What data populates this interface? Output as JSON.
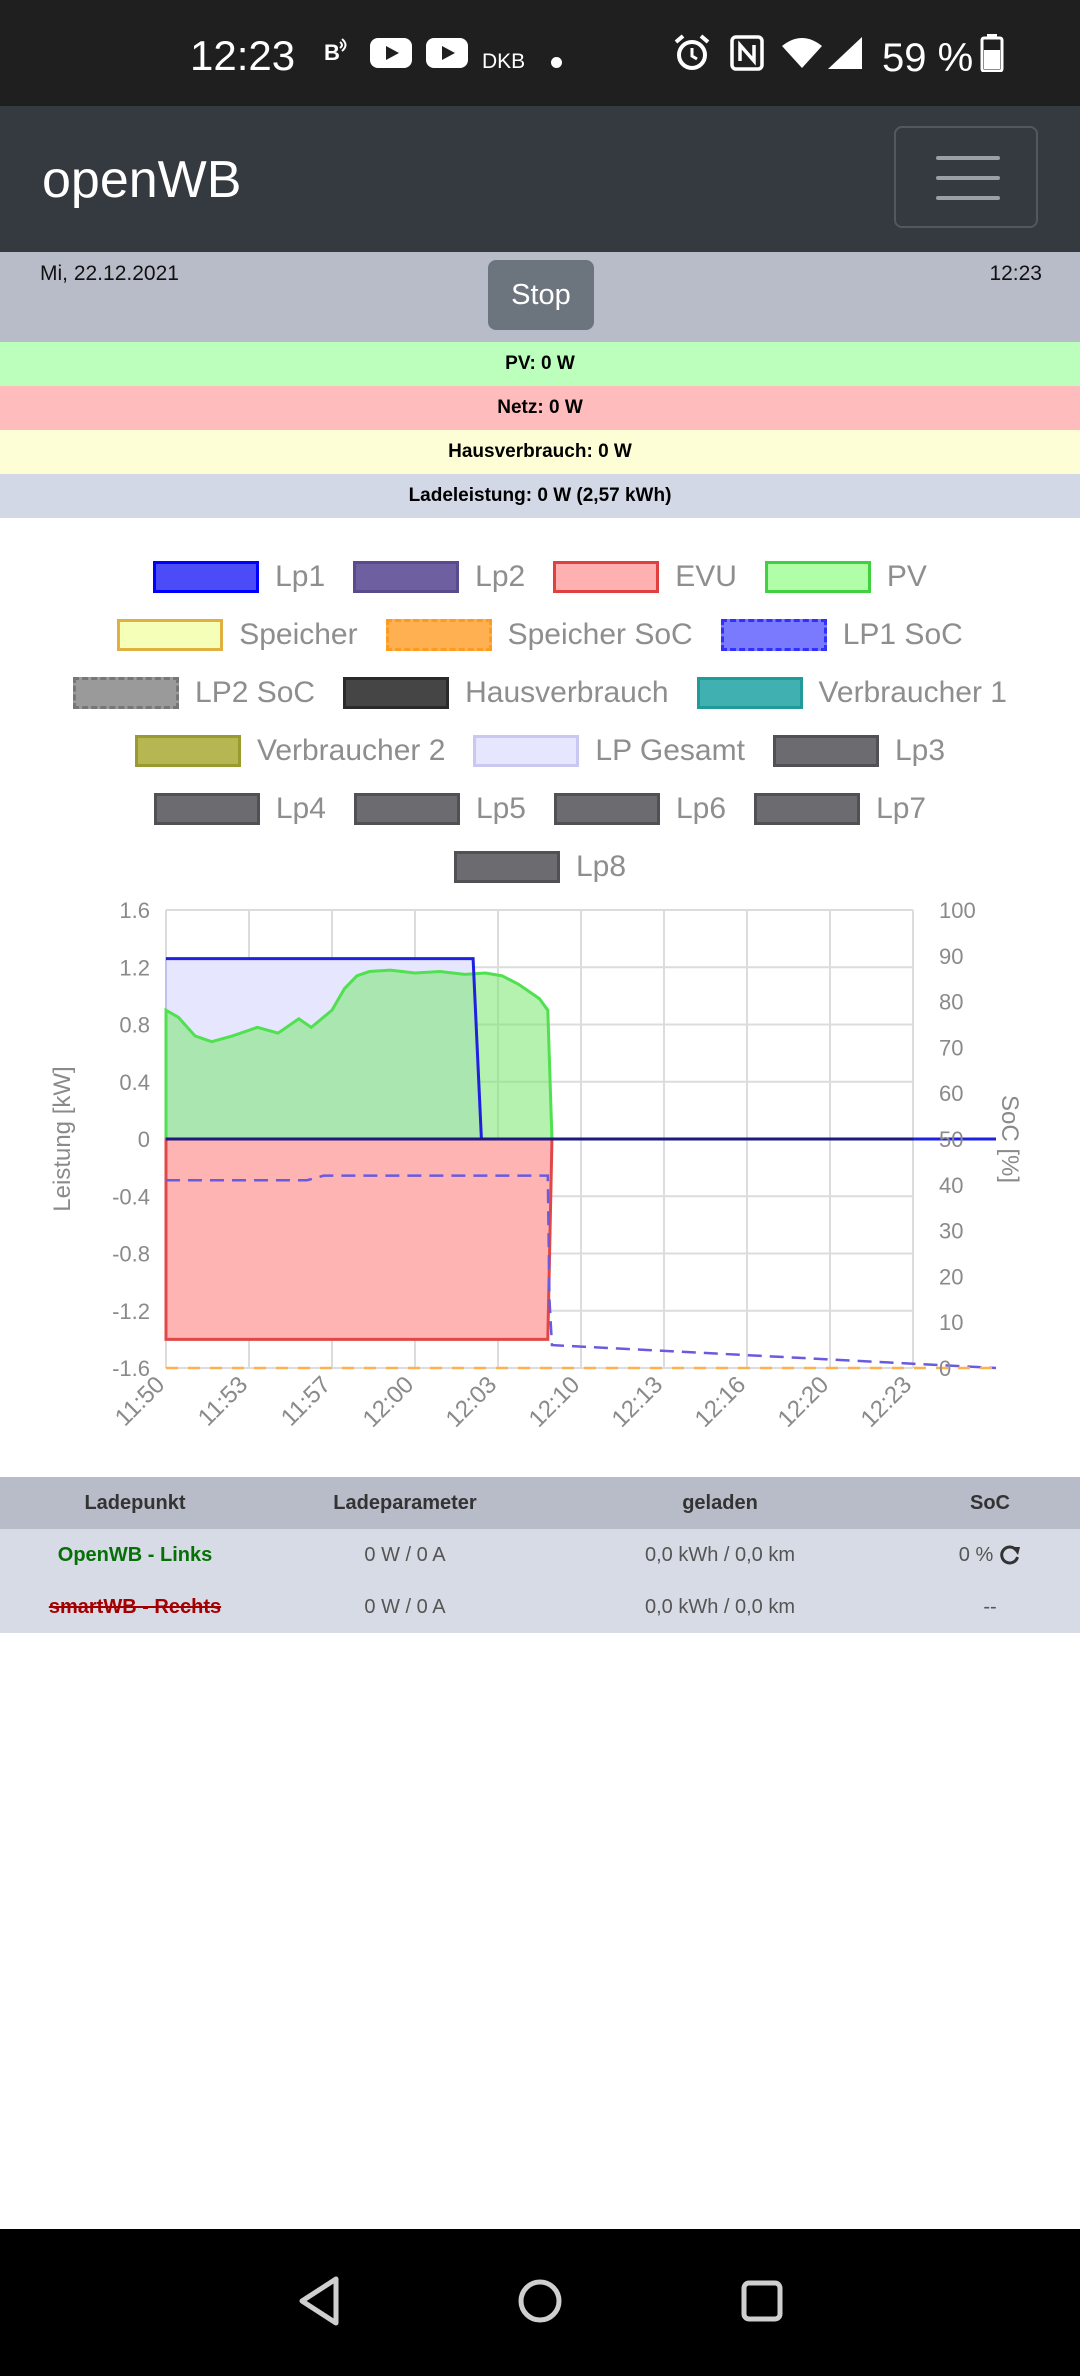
{
  "statusbar": {
    "time": "12:23",
    "icons_left": [
      "bluetooth-b-icon",
      "youtube-icon",
      "youtube-icon"
    ],
    "carrier_text": "DKB",
    "icons_right": [
      "alarm-icon",
      "nfc-icon",
      "wifi-icon",
      "signal-icon",
      "battery-icon"
    ],
    "battery": "59 %"
  },
  "navbar": {
    "brand": "openWB",
    "menu_icon": "hamburger-icon"
  },
  "datebar": {
    "date": "Mi, 22.12.2021",
    "time": "12:23",
    "stop_label": "Stop"
  },
  "rows": {
    "pv": "PV: 0 W",
    "netz": "Netz: 0 W",
    "haus": "Hausverbrauch: 0 W",
    "lade": "Ladeleistung: 0 W (2,57 kWh)"
  },
  "colors": {
    "pv_row": "#bcffbc",
    "netz_row": "#ffbcbc",
    "haus_row": "#fefed6",
    "lade_row": "#d2d8e6"
  },
  "legend": [
    {
      "label": "Lp1",
      "fill": "#4b4bf7",
      "border": "#0000ff",
      "dash": false
    },
    {
      "label": "Lp2",
      "fill": "#6e5fa0",
      "border": "#5a4b8e",
      "dash": false
    },
    {
      "label": "EVU",
      "fill": "#ffb0b0",
      "border": "#e04040",
      "dash": false
    },
    {
      "label": "PV",
      "fill": "#b0ffa8",
      "border": "#40d040",
      "dash": false
    },
    {
      "label": "Speicher",
      "fill": "#f6ffb8",
      "border": "#e0b040",
      "dash": false
    },
    {
      "label": "Speicher SoC",
      "fill": "#ffb050",
      "border": "#ff9a20",
      "dash": true
    },
    {
      "label": "LP1 SoC",
      "fill": "#7a7aff",
      "border": "#3030ff",
      "dash": true
    },
    {
      "label": "LP2 SoC",
      "fill": "#9a9a9a",
      "border": "#777777",
      "dash": true
    },
    {
      "label": "Hausverbrauch",
      "fill": "#454545",
      "border": "#2a2a2a",
      "dash": false
    },
    {
      "label": "Verbraucher 1",
      "fill": "#40b0b0",
      "border": "#209a9a",
      "dash": false
    },
    {
      "label": "Verbraucher 2",
      "fill": "#b6b652",
      "border": "#9a9a30",
      "dash": false
    },
    {
      "label": "LP Gesamt",
      "fill": "#e6e6ff",
      "border": "#c8c8f0",
      "dash": false
    },
    {
      "label": "Lp3",
      "fill": "#6c6c70",
      "border": "#505055",
      "dash": false
    },
    {
      "label": "Lp4",
      "fill": "#6c6c70",
      "border": "#505055",
      "dash": false
    },
    {
      "label": "Lp5",
      "fill": "#6c6c70",
      "border": "#505055",
      "dash": false
    },
    {
      "label": "Lp6",
      "fill": "#6c6c70",
      "border": "#505055",
      "dash": false
    },
    {
      "label": "Lp7",
      "fill": "#6c6c70",
      "border": "#505055",
      "dash": false
    },
    {
      "label": "Lp8",
      "fill": "#6c6c70",
      "border": "#505055",
      "dash": false
    }
  ],
  "chart_data": {
    "type": "area",
    "ylabel": "Leistung [kW]",
    "y2label": "SoC [%]",
    "ylim": [
      -1.6,
      1.6
    ],
    "y2lim": [
      0,
      100
    ],
    "yticks": [
      1.6,
      1.2,
      0.8,
      0.4,
      0,
      -0.4,
      -0.8,
      -1.2,
      -1.6
    ],
    "y2ticks": [
      100,
      90,
      80,
      70,
      60,
      50,
      40,
      30,
      20,
      10,
      0
    ],
    "xticks": [
      "11:50",
      "11:53",
      "11:57",
      "12:00",
      "12:03",
      "12:10",
      "12:13",
      "12:16",
      "12:20",
      "12:23"
    ],
    "grid": true,
    "series": [
      {
        "name": "LP Gesamt",
        "x": [
          0,
          3.7,
          3.8,
          10
        ],
        "y": [
          1.26,
          1.26,
          0,
          0
        ]
      },
      {
        "name": "Lp1",
        "x": [
          0,
          3.7,
          3.8,
          10
        ],
        "y": [
          1.26,
          1.26,
          0,
          0
        ]
      },
      {
        "name": "PV",
        "x": [
          0,
          0.15,
          0.35,
          0.55,
          0.8,
          1.1,
          1.35,
          1.6,
          1.75,
          2.0,
          2.15,
          2.3,
          2.45,
          2.7,
          3.0,
          3.3,
          3.6,
          3.85,
          4.05,
          4.25,
          4.5,
          4.6,
          4.65
        ],
        "y": [
          0.9,
          0.85,
          0.72,
          0.68,
          0.72,
          0.78,
          0.74,
          0.84,
          0.78,
          0.9,
          1.05,
          1.14,
          1.17,
          1.18,
          1.16,
          1.17,
          1.15,
          1.16,
          1.14,
          1.08,
          0.98,
          0.9,
          0
        ]
      },
      {
        "name": "EVU",
        "x": [
          0,
          4.6,
          4.65
        ],
        "y": [
          -1.4,
          -1.4,
          0
        ]
      },
      {
        "name": "LP1 SoC",
        "x": [
          0,
          1.7,
          1.9,
          4.6,
          4.62,
          4.65,
          10
        ],
        "y": [
          41,
          41,
          42,
          42,
          15,
          5,
          0
        ]
      },
      {
        "name": "Speicher SoC",
        "x": [
          0,
          10
        ],
        "y": [
          0,
          0
        ]
      }
    ]
  },
  "table": {
    "headers": [
      "Ladepunkt",
      "Ladeparameter",
      "geladen",
      "SoC"
    ],
    "rows": [
      {
        "name": "OpenWB - Links",
        "param": "0 W / 0 A",
        "geladen": "0,0 kWh / 0,0 km",
        "soc": "0 %"
      },
      {
        "name": "smartWB - Rechts",
        "param": "0 W / 0 A",
        "geladen": "0,0 kWh / 0,0 km",
        "soc": "--"
      }
    ]
  },
  "bottom_nav": [
    "back-icon",
    "home-icon",
    "recents-icon"
  ]
}
